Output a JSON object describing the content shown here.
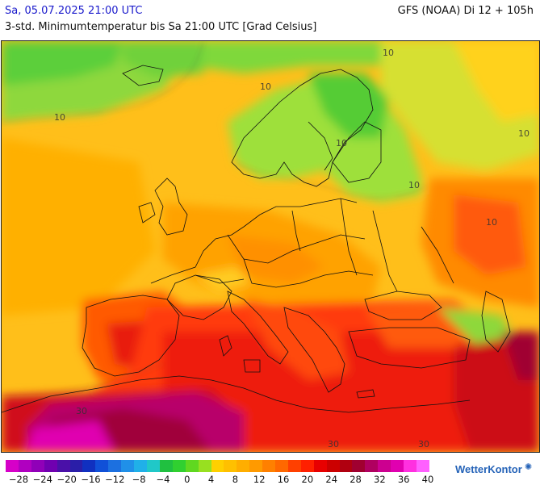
{
  "header": {
    "datetime": "Sa, 05.07.2025 21:00 UTC",
    "model_run": "GFS (NOAA) Di 12 + 105h",
    "subtitle": "3-std. Minimumtemperatur bis Sa 21:00 UTC [Grad Celsius]"
  },
  "map": {
    "isotherm_labels": [
      {
        "text": "10"
      },
      {
        "text": "10"
      },
      {
        "text": "10"
      },
      {
        "text": "10"
      },
      {
        "text": "10"
      },
      {
        "text": "10"
      },
      {
        "text": "30"
      },
      {
        "text": "30"
      },
      {
        "text": "30"
      },
      {
        "text": "10"
      }
    ]
  },
  "legend": {
    "tick_labels": [
      "−28",
      "−24",
      "−20",
      "−16",
      "−12",
      "−8",
      "−4",
      "0",
      "4",
      "8",
      "12",
      "16",
      "20",
      "24",
      "28",
      "32",
      "36",
      "40"
    ],
    "colors": [
      "#d600c8",
      "#b000c0",
      "#9000b8",
      "#7000b0",
      "#4a10a8",
      "#2a1ea8",
      "#1030c0",
      "#1050d8",
      "#1c70e0",
      "#2090e8",
      "#20b0e8",
      "#20c8c8",
      "#20c040",
      "#30d030",
      "#60d820",
      "#98e020",
      "#ffd000",
      "#ffc000",
      "#ffae00",
      "#ff9a00",
      "#ff8000",
      "#ff6800",
      "#ff4000",
      "#ff2000",
      "#e80000",
      "#cc0000",
      "#b00010",
      "#a00030",
      "#b00060",
      "#cc0090",
      "#e000b0",
      "#ff30e0",
      "#ff60ff"
    ]
  },
  "branding": {
    "name": "WetterKontor",
    "icon": "sun-icon"
  }
}
